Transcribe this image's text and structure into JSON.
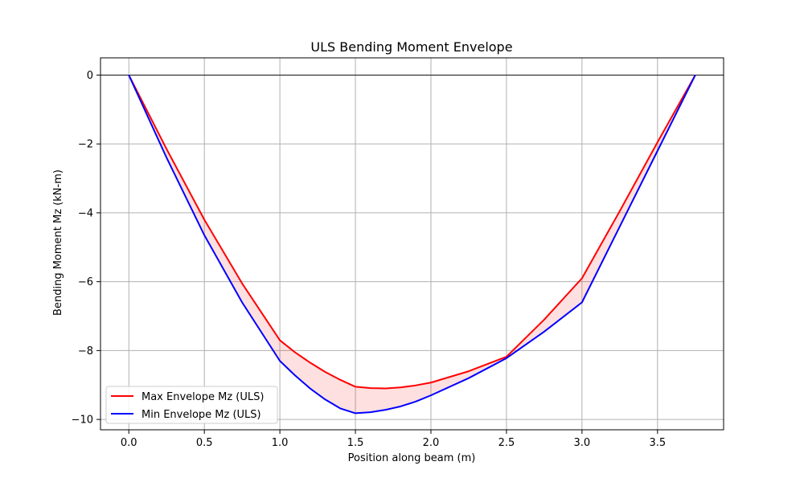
{
  "chart_data": {
    "type": "line",
    "title": "ULS Bending Moment Envelope",
    "xlabel": "Position along beam (m)",
    "ylabel": "Bending Moment Mz (kN-m)",
    "xlim": [
      -0.1875,
      3.9375
    ],
    "ylim": [
      -10.3,
      0.5
    ],
    "xticks": [
      0.0,
      0.5,
      1.0,
      1.5,
      2.0,
      2.5,
      3.0,
      3.5
    ],
    "xtick_labels": [
      "0.0",
      "0.5",
      "1.0",
      "1.5",
      "2.0",
      "2.5",
      "3.0",
      "3.5"
    ],
    "yticks": [
      0,
      -2,
      -4,
      -6,
      -8,
      -10
    ],
    "ytick_labels": [
      "0",
      "−2",
      "−4",
      "−6",
      "−8",
      "−10"
    ],
    "grid": true,
    "zero_line": true,
    "fill_between": {
      "color": "#ff0000",
      "opacity": 0.12
    },
    "legend": {
      "position": "lower-left"
    },
    "series": [
      {
        "name": "Max Envelope Mz (ULS)",
        "color": "#ff0000",
        "x": [
          0.0,
          0.25,
          0.5,
          0.75,
          1.0,
          1.1,
          1.2,
          1.3,
          1.4,
          1.5,
          1.6,
          1.7,
          1.8,
          1.9,
          2.0,
          2.25,
          2.5,
          2.75,
          3.0,
          3.25,
          3.5,
          3.75
        ],
        "y": [
          0.0,
          -2.15,
          -4.2,
          -6.05,
          -7.7,
          -8.05,
          -8.35,
          -8.62,
          -8.85,
          -9.05,
          -9.09,
          -9.1,
          -9.07,
          -9.01,
          -8.93,
          -8.6,
          -8.18,
          -7.1,
          -5.9,
          -3.95,
          -1.95,
          0.0
        ]
      },
      {
        "name": "Min Envelope Mz (ULS)",
        "color": "#0000ff",
        "x": [
          0.0,
          0.25,
          0.5,
          0.75,
          1.0,
          1.1,
          1.2,
          1.3,
          1.4,
          1.5,
          1.6,
          1.7,
          1.8,
          1.9,
          2.0,
          2.25,
          2.5,
          2.75,
          3.0,
          3.25,
          3.5,
          3.75
        ],
        "y": [
          0.0,
          -2.4,
          -4.65,
          -6.6,
          -8.3,
          -8.72,
          -9.1,
          -9.42,
          -9.68,
          -9.82,
          -9.79,
          -9.72,
          -9.62,
          -9.48,
          -9.3,
          -8.8,
          -8.22,
          -7.45,
          -6.6,
          -4.4,
          -2.2,
          0.0
        ]
      }
    ]
  }
}
